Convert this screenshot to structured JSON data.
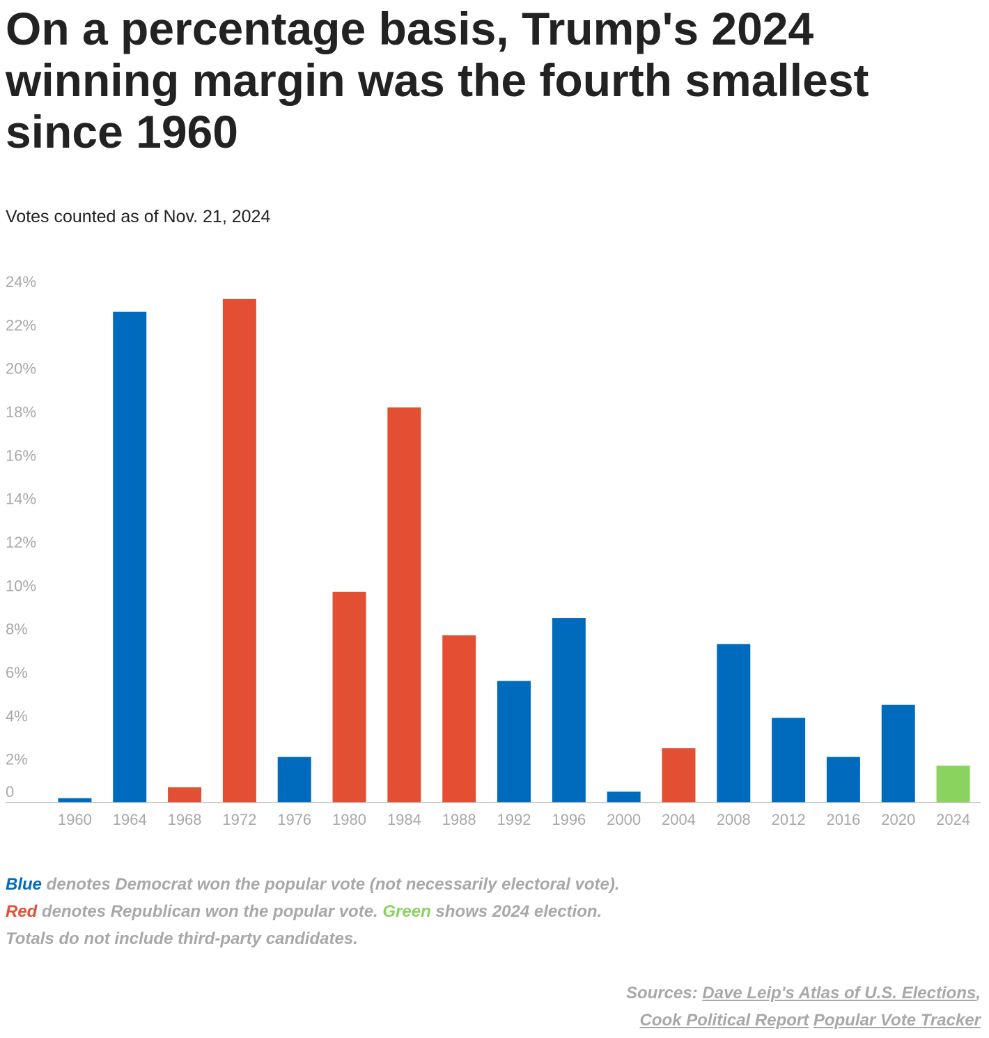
{
  "title": "On a percentage basis, Trump's 2024 winning margin was the fourth smallest since 1960",
  "subtitle": "Votes counted as of Nov. 21, 2024",
  "chart_data": {
    "type": "bar",
    "title": "On a percentage basis, Trump's 2024 winning margin was the fourth smallest since 1960",
    "subtitle": "Votes counted as of Nov. 21, 2024",
    "xlabel": "",
    "ylabel": "",
    "ylim": [
      0,
      24
    ],
    "yticks": [
      0,
      2,
      4,
      6,
      8,
      10,
      12,
      14,
      16,
      18,
      20,
      22,
      24
    ],
    "ytick_labels": [
      "0",
      "2%",
      "4%",
      "6%",
      "8%",
      "10%",
      "12%",
      "14%",
      "16%",
      "18%",
      "20%",
      "22%",
      "24%"
    ],
    "categories": [
      "1960",
      "1964",
      "1968",
      "1972",
      "1976",
      "1980",
      "1984",
      "1988",
      "1992",
      "1996",
      "2000",
      "2004",
      "2008",
      "2012",
      "2016",
      "2020",
      "2024"
    ],
    "values": [
      0.2,
      22.6,
      0.7,
      23.2,
      2.1,
      9.7,
      18.2,
      7.7,
      5.6,
      8.5,
      0.5,
      2.5,
      7.3,
      3.9,
      2.1,
      4.5,
      1.7
    ],
    "winner": [
      "D",
      "D",
      "R",
      "R",
      "D",
      "R",
      "R",
      "R",
      "D",
      "D",
      "D",
      "R",
      "D",
      "D",
      "D",
      "D",
      "2024"
    ],
    "colors": {
      "D": "#006bbd",
      "R": "#e34f32",
      "2024": "#8bd35f"
    },
    "grid": false,
    "legend": "none"
  },
  "notes": {
    "line1_key": "Blue",
    "line1_text": " denotes Democrat won the popular vote (not necessarily electoral vote).",
    "line2_key": "Red",
    "line2_text": " denotes Republican won the popular vote. ",
    "line2_key2": "Green",
    "line2_text2": " shows 2024 election.",
    "line3_text": "Totals do not include third-party candidates."
  },
  "sources": {
    "label": "Sources: ",
    "link1": "Dave Leip's Atlas of U.S. Elections",
    "sep": ",",
    "link2": "Cook Political Report",
    "link3": "Popular Vote Tracker"
  }
}
